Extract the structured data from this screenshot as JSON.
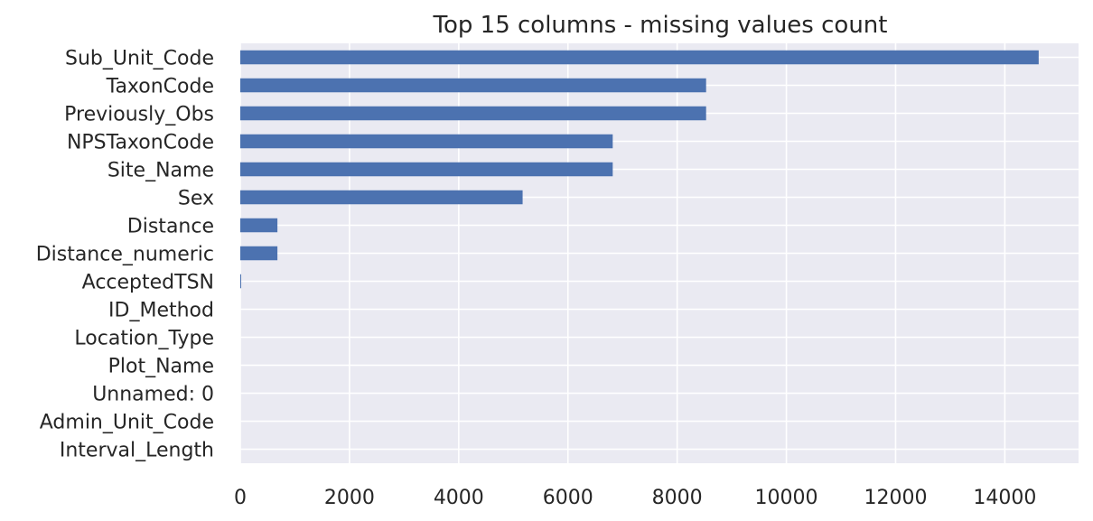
{
  "chart_data": {
    "type": "bar",
    "orientation": "horizontal",
    "title": "Top 15 columns - missing values count",
    "xlabel": "",
    "ylabel": "",
    "categories": [
      "Sub_Unit_Code",
      "TaxonCode",
      "Previously_Obs",
      "NPSTaxonCode",
      "Site_Name",
      "Sex",
      "Distance",
      "Distance_numeric",
      "AcceptedTSN",
      "ID_Method",
      "Location_Type",
      "Plot_Name",
      "Unnamed: 0",
      "Admin_Unit_Code",
      "Interval_Length"
    ],
    "values": [
      14620,
      8530,
      8530,
      6820,
      6820,
      5170,
      680,
      680,
      15,
      0,
      0,
      0,
      0,
      0,
      0
    ],
    "xlim": [
      0,
      15350
    ],
    "xticks": [
      "0",
      "2000",
      "4000",
      "6000",
      "8000",
      "10000",
      "12000",
      "14000"
    ],
    "grid": true,
    "legend": "none",
    "colors": {
      "bar": "#4c72b0",
      "plot_background": "#eaeaf2",
      "grid": "#ffffff",
      "text": "#262626"
    }
  }
}
